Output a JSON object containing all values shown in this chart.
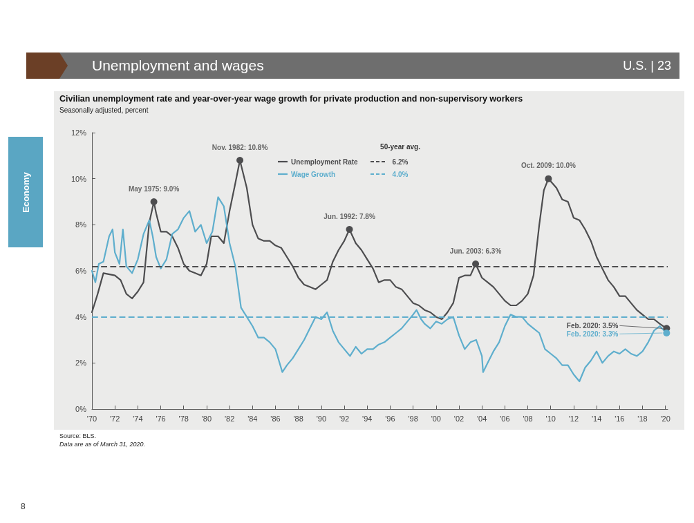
{
  "chart_data": {
    "type": "line",
    "title": "Civilian unemployment rate and year-over-year wage growth for private production and non-supervisory workers",
    "subtitle": "Seasonally adjusted, percent",
    "legend_title": "50-year avg.",
    "legend": "top",
    "grid": false,
    "marker": "none",
    "line_style": "solid",
    "xlim": [
      1970,
      2020.2
    ],
    "xticks": [
      {
        "value": 1970,
        "label": "'70"
      },
      {
        "value": 1972,
        "label": "'72"
      },
      {
        "value": 1974,
        "label": "'74"
      },
      {
        "value": 1976,
        "label": "'76"
      },
      {
        "value": 1978,
        "label": "'78"
      },
      {
        "value": 1980,
        "label": "'80"
      },
      {
        "value": 1982,
        "label": "'82"
      },
      {
        "value": 1984,
        "label": "'84"
      },
      {
        "value": 1986,
        "label": "'86"
      },
      {
        "value": 1988,
        "label": "'88"
      },
      {
        "value": 1990,
        "label": "'90"
      },
      {
        "value": 1992,
        "label": "'92"
      },
      {
        "value": 1994,
        "label": "'94"
      },
      {
        "value": 1996,
        "label": "'96"
      },
      {
        "value": 1998,
        "label": "'98"
      },
      {
        "value": 2000,
        "label": "'00"
      },
      {
        "value": 2002,
        "label": "'02"
      },
      {
        "value": 2004,
        "label": "'04"
      },
      {
        "value": 2006,
        "label": "'06"
      },
      {
        "value": 2008,
        "label": "'08"
      },
      {
        "value": 2010,
        "label": "'10"
      },
      {
        "value": 2012,
        "label": "'12"
      },
      {
        "value": 2014,
        "label": "'14"
      },
      {
        "value": 2016,
        "label": "'16"
      },
      {
        "value": 2018,
        "label": "'18"
      },
      {
        "value": 2020,
        "label": "'20"
      }
    ],
    "ylim": [
      0,
      12
    ],
    "yticks": [
      {
        "value": 0,
        "label": "0%"
      },
      {
        "value": 2,
        "label": "2%"
      },
      {
        "value": 4,
        "label": "4%"
      },
      {
        "value": 6,
        "label": "6%"
      },
      {
        "value": 8,
        "label": "8%"
      },
      {
        "value": 10,
        "label": "10%"
      },
      {
        "value": 12,
        "label": "12%"
      }
    ],
    "series": [
      {
        "name": "Unemployment Rate",
        "color": "#4d4d4f",
        "x": [
          1970,
          1970.5,
          1971,
          1972,
          1972.5,
          1973,
          1973.5,
          1974,
          1974.5,
          1975,
          1975.4,
          1975.6,
          1976,
          1976.5,
          1977,
          1977.5,
          1978,
          1978.5,
          1979,
          1979.5,
          1980,
          1980.4,
          1981,
          1981.5,
          1982,
          1982.5,
          1982.9,
          1983.5,
          1984,
          1984.5,
          1985,
          1985.5,
          1986,
          1986.5,
          1987,
          1987.5,
          1988,
          1988.5,
          1989,
          1989.5,
          1990,
          1990.5,
          1991,
          1991.5,
          1992,
          1992.45,
          1993,
          1993.5,
          1994,
          1994.5,
          1995,
          1995.5,
          1996,
          1996.5,
          1997,
          1997.5,
          1998,
          1998.5,
          1999,
          1999.5,
          2000,
          2000.5,
          2001,
          2001.5,
          2002,
          2002.5,
          2003,
          2003.45,
          2004,
          2004.5,
          2005,
          2005.5,
          2006,
          2006.5,
          2007,
          2007.5,
          2008,
          2008.5,
          2009,
          2009.4,
          2009.8,
          2010.5,
          2011,
          2011.5,
          2012,
          2012.5,
          2013,
          2013.5,
          2014,
          2014.5,
          2015,
          2015.5,
          2016,
          2016.5,
          2017,
          2017.5,
          2018,
          2018.5,
          2019,
          2019.5,
          2020.1
        ],
        "values": [
          4.2,
          5.0,
          5.9,
          5.8,
          5.6,
          5.0,
          4.8,
          5.1,
          5.5,
          8.1,
          9.0,
          8.5,
          7.7,
          7.7,
          7.5,
          7.0,
          6.3,
          6.0,
          5.9,
          5.8,
          6.3,
          7.5,
          7.5,
          7.2,
          8.6,
          9.8,
          10.8,
          9.6,
          8.0,
          7.4,
          7.3,
          7.3,
          7.1,
          7.0,
          6.6,
          6.2,
          5.7,
          5.4,
          5.3,
          5.2,
          5.4,
          5.6,
          6.4,
          6.9,
          7.3,
          7.8,
          7.2,
          6.9,
          6.5,
          6.1,
          5.5,
          5.6,
          5.6,
          5.3,
          5.2,
          4.9,
          4.6,
          4.5,
          4.3,
          4.2,
          4.0,
          3.9,
          4.2,
          4.6,
          5.7,
          5.8,
          5.8,
          6.3,
          5.7,
          5.5,
          5.3,
          5.0,
          4.7,
          4.5,
          4.5,
          4.7,
          5.0,
          5.8,
          8.0,
          9.5,
          10.0,
          9.6,
          9.1,
          9.0,
          8.3,
          8.2,
          7.8,
          7.3,
          6.6,
          6.1,
          5.6,
          5.3,
          4.9,
          4.9,
          4.6,
          4.3,
          4.1,
          3.9,
          3.9,
          3.7,
          3.5
        ]
      },
      {
        "name": "Wage Growth",
        "color": "#5eaecd",
        "x": [
          1970,
          1970.3,
          1970.6,
          1971,
          1971.5,
          1971.8,
          1972,
          1972.4,
          1972.7,
          1973,
          1973.5,
          1974,
          1974.5,
          1975,
          1975.3,
          1975.6,
          1976,
          1976.5,
          1977,
          1977.5,
          1978,
          1978.5,
          1979,
          1979.5,
          1980,
          1980.5,
          1981,
          1981.5,
          1982,
          1982.5,
          1983,
          1983.5,
          1984,
          1984.5,
          1985,
          1985.5,
          1986,
          1986.6,
          1987,
          1987.5,
          1988,
          1988.5,
          1989,
          1989.5,
          1990,
          1990.5,
          1991,
          1991.5,
          1992,
          1992.5,
          1993,
          1993.5,
          1994,
          1994.5,
          1995,
          1995.5,
          1996,
          1996.5,
          1997,
          1997.5,
          1998,
          1998.3,
          1998.7,
          1999,
          1999.5,
          2000,
          2000.5,
          2001,
          2001.5,
          2002,
          2002.5,
          2003,
          2003.5,
          2004,
          2004.1,
          2004.5,
          2005,
          2005.5,
          2006,
          2006.5,
          2007,
          2007.5,
          2008,
          2008.5,
          2009,
          2009.5,
          2010,
          2010.5,
          2011,
          2011.5,
          2012,
          2012.5,
          2013,
          2013.5,
          2014,
          2014.5,
          2015,
          2015.5,
          2016,
          2016.5,
          2017,
          2017.5,
          2018,
          2018.5,
          2019,
          2019.5,
          2020.1
        ],
        "values": [
          6.0,
          5.5,
          6.3,
          6.4,
          7.5,
          7.8,
          6.8,
          6.3,
          7.8,
          6.2,
          5.9,
          6.5,
          7.6,
          8.2,
          7.5,
          6.6,
          6.1,
          6.5,
          7.6,
          7.8,
          8.3,
          8.6,
          7.7,
          8.0,
          7.2,
          7.7,
          9.2,
          8.8,
          7.2,
          6.2,
          4.4,
          4.0,
          3.6,
          3.1,
          3.1,
          2.9,
          2.6,
          1.6,
          1.9,
          2.2,
          2.6,
          3.0,
          3.5,
          4.0,
          3.9,
          4.2,
          3.4,
          2.9,
          2.6,
          2.3,
          2.7,
          2.4,
          2.6,
          2.6,
          2.8,
          2.9,
          3.1,
          3.3,
          3.5,
          3.8,
          4.1,
          4.3,
          3.9,
          3.7,
          3.5,
          3.8,
          3.7,
          3.9,
          4.0,
          3.2,
          2.6,
          2.9,
          3.0,
          2.3,
          1.6,
          2.0,
          2.5,
          2.9,
          3.6,
          4.1,
          4.0,
          4.0,
          3.7,
          3.5,
          3.3,
          2.6,
          2.4,
          2.2,
          1.9,
          1.9,
          1.5,
          1.2,
          1.8,
          2.1,
          2.5,
          2.0,
          2.3,
          2.5,
          2.4,
          2.6,
          2.4,
          2.3,
          2.5,
          2.9,
          3.4,
          3.6,
          3.3
        ]
      }
    ],
    "ref_lines": [
      {
        "axis": "y",
        "value": 6.2,
        "label": "6.2%",
        "color": "#4d4d4f",
        "line_style": "dashed"
      },
      {
        "axis": "y",
        "value": 4.0,
        "label": "4.0%",
        "color": "#5eaecd",
        "line_style": "dashed"
      }
    ],
    "annotations": [
      "Unemployment and wages",
      "U.S. | 23",
      "Economy",
      "Source: BLS.",
      "Data are as of March 31, 2020.",
      "8",
      {
        "text": "May 1975: 9.0%",
        "x": 1975.4,
        "y": 9.0
      },
      {
        "text": "Nov. 1982: 10.8%",
        "x": 1982.9,
        "y": 10.8
      },
      {
        "text": "Jun. 1992: 7.8%",
        "x": 1992.45,
        "y": 7.8
      },
      {
        "text": "Jun. 2003: 6.3%",
        "x": 2003.45,
        "y": 6.3
      },
      {
        "text": "Oct. 2009: 10.0%",
        "x": 2009.8,
        "y": 10.0
      },
      {
        "text": "Feb. 2020: 3.5%",
        "x": 2020.1,
        "y": 3.5
      },
      {
        "text": "Feb. 2020: 3.3%",
        "x": 2020.1,
        "y": 3.3
      }
    ]
  }
}
